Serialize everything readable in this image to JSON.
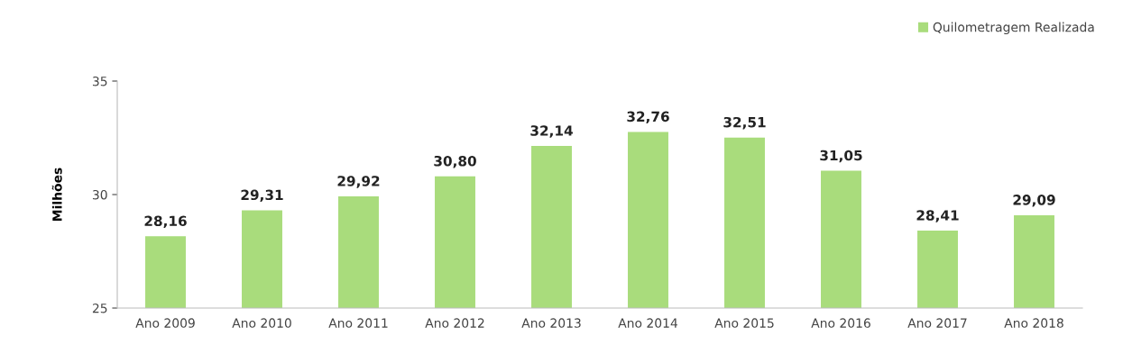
{
  "chart_data": {
    "type": "bar",
    "ylabel": "Milhões",
    "categories": [
      "Ano 2009",
      "Ano 2010",
      "Ano 2011",
      "Ano 2012",
      "Ano 2013",
      "Ano 2014",
      "Ano 2015",
      "Ano 2016",
      "Ano 2017",
      "Ano 2018"
    ],
    "series": [
      {
        "name": "Quilometragem Realizada",
        "color": "#a9dc7c",
        "values": [
          28.16,
          29.31,
          29.92,
          30.8,
          32.14,
          32.76,
          32.51,
          31.05,
          28.41,
          29.09
        ],
        "value_labels": [
          "28,16",
          "29,31",
          "29,92",
          "30,80",
          "32,14",
          "32,76",
          "32,51",
          "31,05",
          "28,41",
          "29,09"
        ]
      }
    ],
    "ylim": [
      25,
      35
    ],
    "yticks": [
      25,
      30,
      35
    ],
    "grid": false,
    "legend": "top right"
  }
}
